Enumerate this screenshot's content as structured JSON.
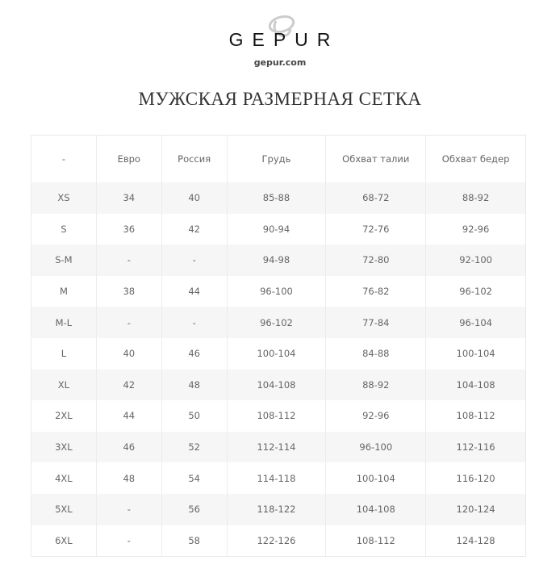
{
  "brand": {
    "name": "GEPUR",
    "site": "gepur.com"
  },
  "title": "МУЖСКАЯ РАЗМЕРНАЯ СЕТКА",
  "table": {
    "headers": [
      "-",
      "Евро",
      "Россия",
      "Грудь",
      "Обхват талии",
      "Обхват бедер"
    ],
    "rows": [
      [
        "XS",
        "34",
        "40",
        "85-88",
        "68-72",
        "88-92"
      ],
      [
        "S",
        "36",
        "42",
        "90-94",
        "72-76",
        "92-96"
      ],
      [
        "S-M",
        "-",
        "-",
        "94-98",
        "72-80",
        "92-100"
      ],
      [
        "M",
        "38",
        "44",
        "96-100",
        "76-82",
        "96-102"
      ],
      [
        "M-L",
        "-",
        "-",
        "96-102",
        "77-84",
        "96-104"
      ],
      [
        "L",
        "40",
        "46",
        "100-104",
        "84-88",
        "100-104"
      ],
      [
        "XL",
        "42",
        "48",
        "104-108",
        "88-92",
        "104-108"
      ],
      [
        "2XL",
        "44",
        "50",
        "108-112",
        "92-96",
        "108-112"
      ],
      [
        "3XL",
        "46",
        "52",
        "112-114",
        "96-100",
        "112-116"
      ],
      [
        "4XL",
        "48",
        "54",
        "114-118",
        "100-104",
        "116-120"
      ],
      [
        "5XL",
        "-",
        "56",
        "118-122",
        "104-108",
        "120-124"
      ],
      [
        "6XL",
        "-",
        "58",
        "122-126",
        "108-112",
        "124-128"
      ]
    ]
  }
}
